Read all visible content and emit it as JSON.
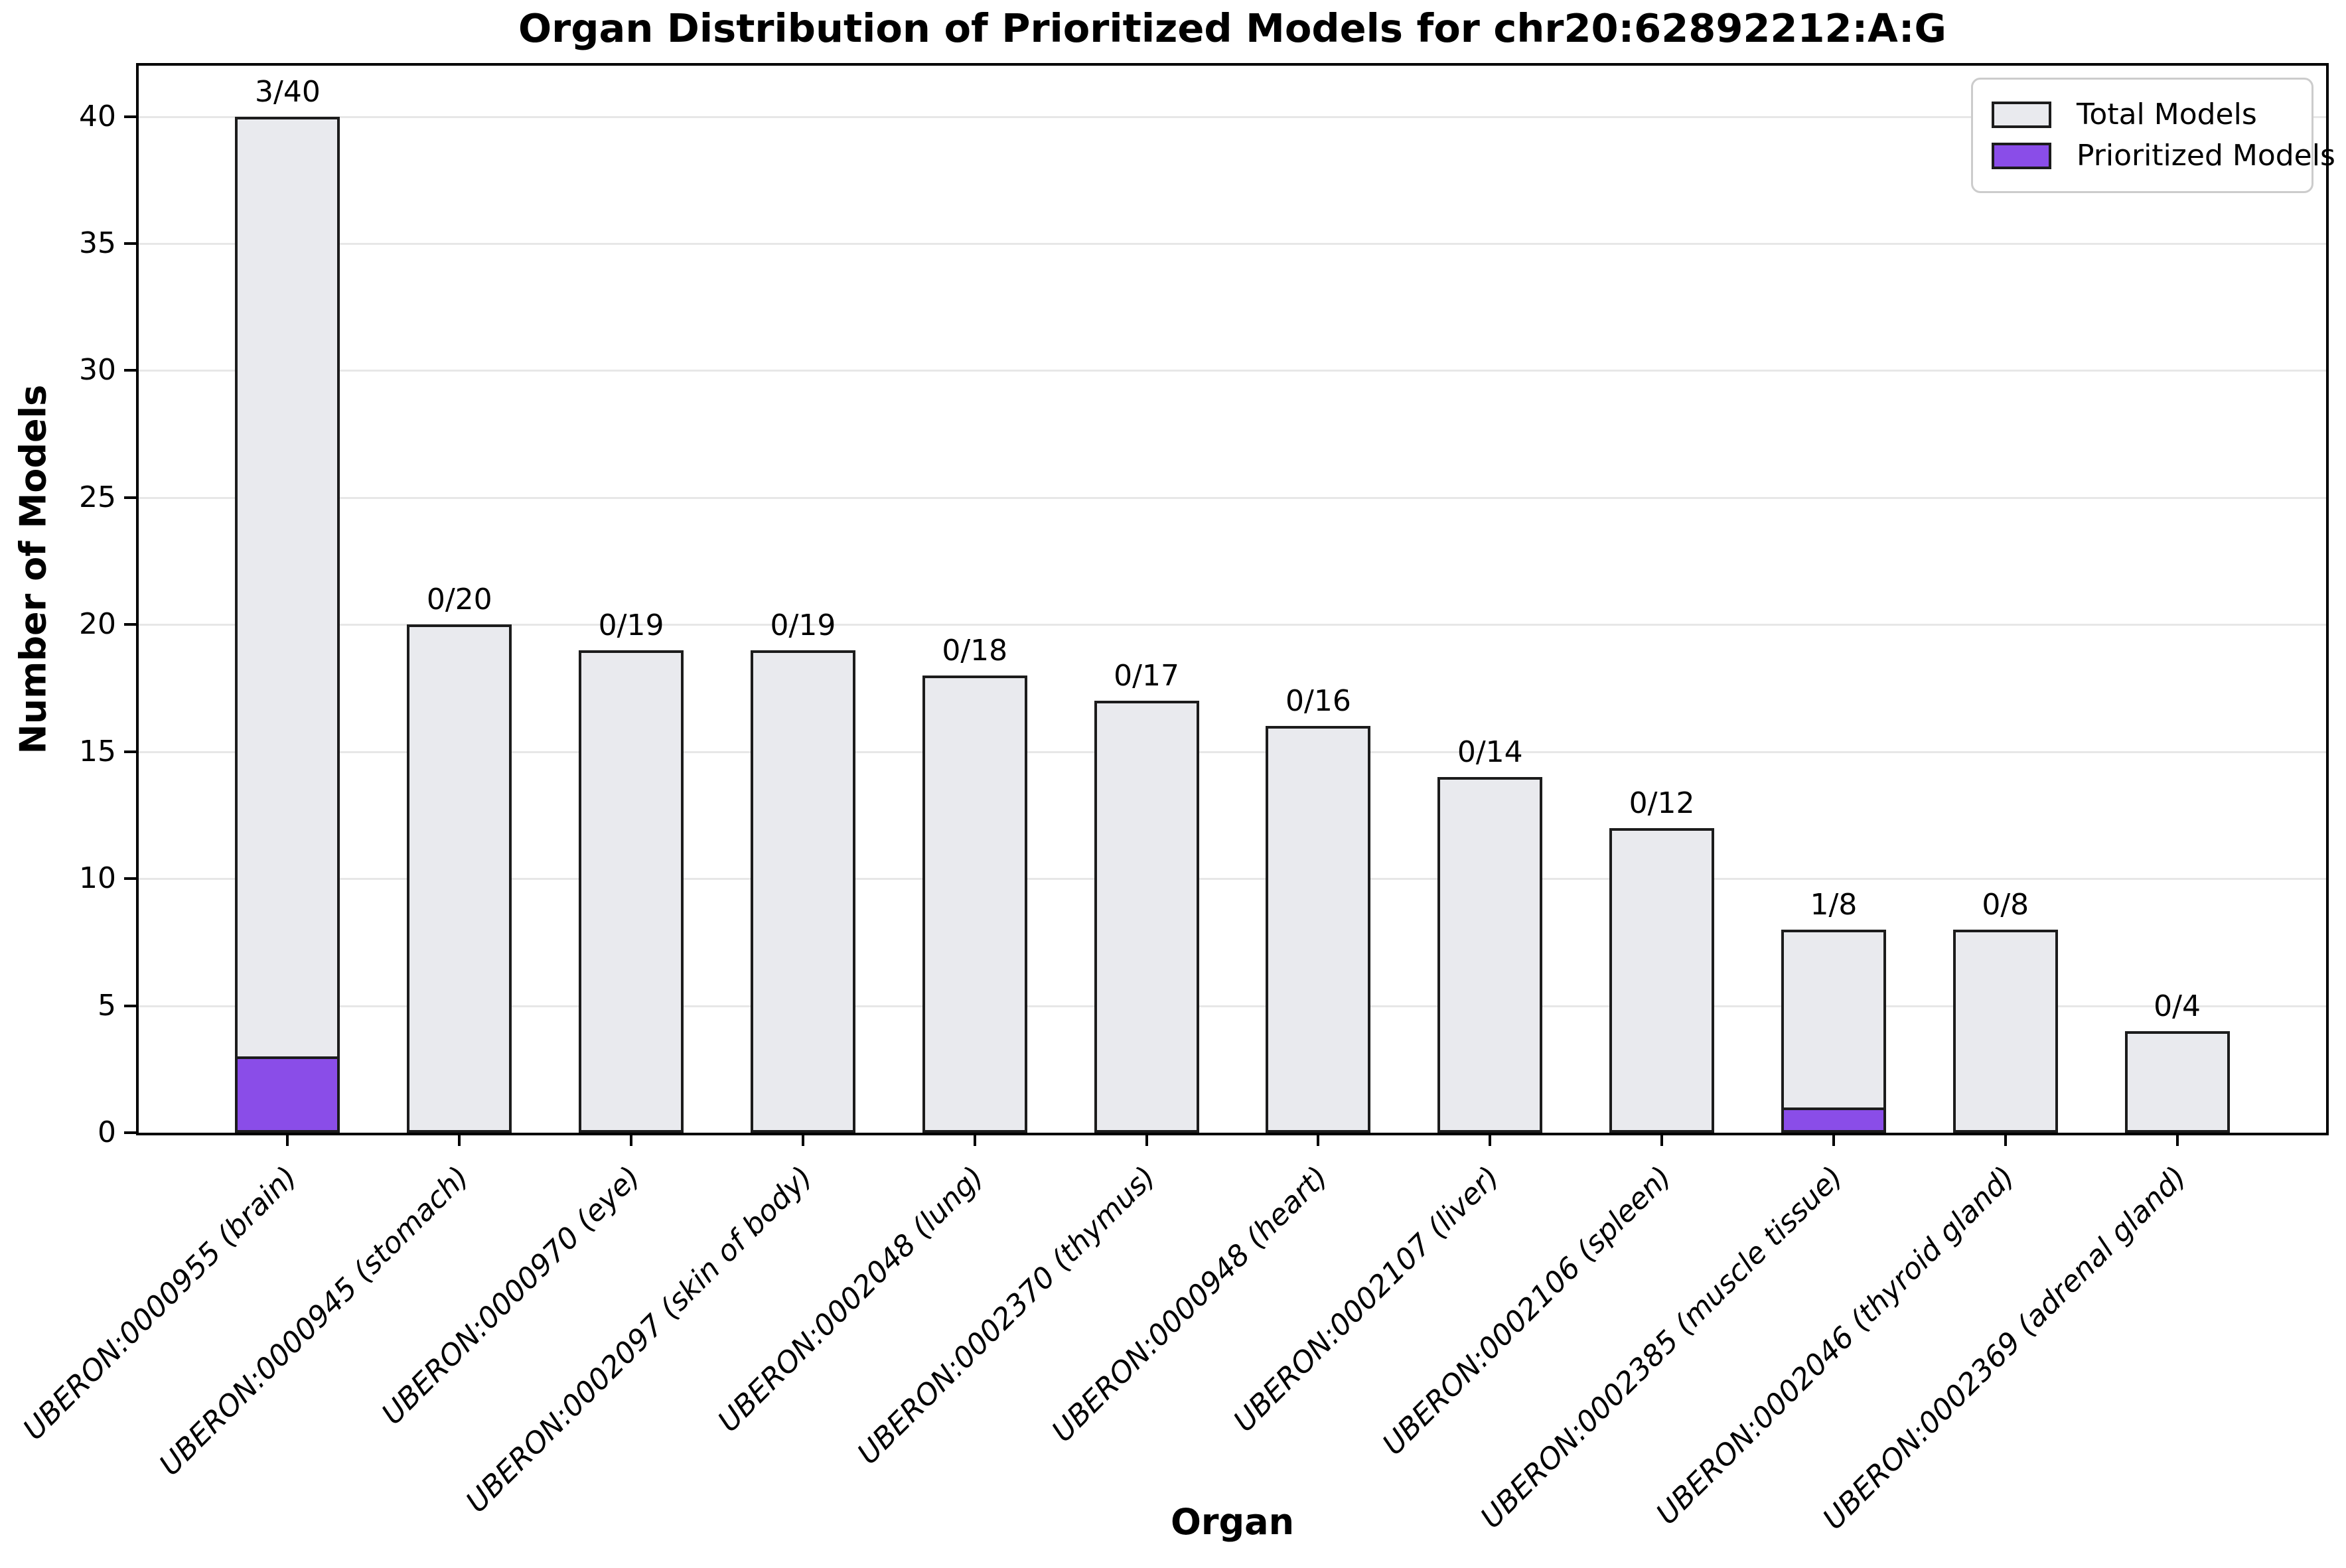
{
  "title": "Organ Distribution of Prioritized Models for chr20:62892212:A:G",
  "colors": {
    "total_fill": "#e9eaee",
    "prioritized_fill": "#8a4de8",
    "bar_edge": "#1c1c1c",
    "grid": "#e7e7e7",
    "spine": "#000000"
  },
  "legend": {
    "total_label": "Total Models",
    "prioritized_label": "Prioritized Models"
  },
  "chart_data": {
    "type": "bar",
    "title": "Organ Distribution of Prioritized Models for chr20:62892212:A:G",
    "xlabel": "Organ",
    "ylabel": "Number of Models",
    "ylim": [
      0,
      42
    ],
    "yticks": [
      0,
      5,
      10,
      15,
      20,
      25,
      30,
      35,
      40
    ],
    "grid": "horizontal",
    "legend_position": "upper right",
    "categories": [
      "UBERON:0000955 (brain)",
      "UBERON:0000945 (stomach)",
      "UBERON:0000970 (eye)",
      "UBERON:0002097 (skin of body)",
      "UBERON:0002048 (lung)",
      "UBERON:0002370 (thymus)",
      "UBERON:0000948 (heart)",
      "UBERON:0002107 (liver)",
      "UBERON:0002106 (spleen)",
      "UBERON:0002385 (muscle tissue)",
      "UBERON:0002046 (thyroid gland)",
      "UBERON:0002369 (adrenal gland)"
    ],
    "series": [
      {
        "name": "Total Models",
        "values": [
          40,
          20,
          19,
          19,
          18,
          17,
          16,
          14,
          12,
          8,
          8,
          4
        ]
      },
      {
        "name": "Prioritized Models",
        "values": [
          3,
          0,
          0,
          0,
          0,
          0,
          0,
          0,
          0,
          1,
          0,
          0
        ]
      }
    ],
    "bar_annotations": [
      "3/40",
      "0/20",
      "0/19",
      "0/19",
      "0/18",
      "0/17",
      "0/16",
      "0/14",
      "0/12",
      "1/8",
      "0/8",
      "0/4"
    ]
  }
}
